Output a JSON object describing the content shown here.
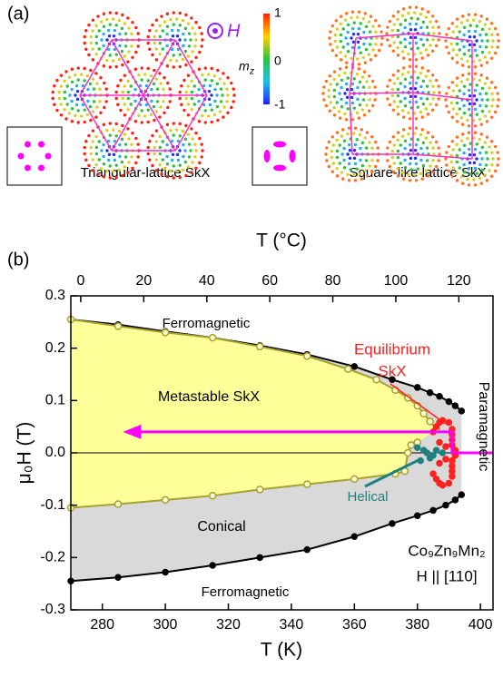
{
  "panel_a": {
    "label": "(a)",
    "field_symbol": "H",
    "colorbar_label": "m",
    "colorbar_label_sub": "z",
    "colorbar_ticks": [
      1,
      0,
      -1
    ],
    "left_caption": "Triangular-lattice  SkX",
    "right_caption": "Square-like lattice SkX"
  },
  "chart_data": {
    "type": "phase-diagram",
    "label": "(b)",
    "xlabel": "T (K)",
    "x2label": "T (°C)",
    "ylabel": "μ₀H (T)",
    "xlim": [
      270,
      404
    ],
    "xticks": [
      280,
      300,
      320,
      340,
      360,
      380,
      400
    ],
    "x2lim": [
      -3.15,
      130.85
    ],
    "x2ticks": [
      0,
      20,
      40,
      60,
      80,
      100,
      120
    ],
    "ylim": [
      -0.3,
      0.3
    ],
    "yticks": [
      0.3,
      0.2,
      0.1,
      {
        "value": 0,
        "label": "0.0"
      },
      -0.1,
      -0.2,
      -0.3
    ],
    "series": [
      {
        "color": "#000000",
        "marker": "filled",
        "line": true,
        "x": [
          270,
          285,
          300,
          315,
          330,
          345,
          360,
          372,
          380,
          384,
          387,
          390,
          392,
          394
        ],
        "values": [
          0.255,
          0.245,
          0.232,
          0.22,
          0.205,
          0.188,
          0.165,
          0.14,
          0.125,
          0.115,
          0.108,
          0.098,
          0.09,
          0.08
        ]
      },
      {
        "color": "#000000",
        "marker": "filled",
        "line": true,
        "x": [
          270,
          285,
          300,
          315,
          330,
          345,
          360,
          372,
          380,
          385,
          389,
          392,
          394
        ],
        "values": [
          -0.245,
          -0.238,
          -0.228,
          -0.215,
          -0.2,
          -0.185,
          -0.16,
          -0.135,
          -0.12,
          -0.11,
          -0.1,
          -0.09,
          -0.08
        ]
      },
      {
        "color": "#a8a030",
        "marker": "open",
        "line": true,
        "x": [
          270,
          285,
          300,
          315,
          330,
          345,
          358,
          367,
          373,
          377,
          380,
          382,
          384,
          386
        ],
        "values": [
          0.255,
          0.242,
          0.23,
          0.22,
          0.203,
          0.185,
          0.16,
          0.14,
          0.12,
          0.105,
          0.09,
          0.075,
          0.06,
          0.045
        ]
      },
      {
        "color": "#a8a030",
        "marker": "open",
        "line": true,
        "x": [
          270,
          285,
          300,
          315,
          330,
          345,
          360,
          373,
          376,
          377,
          378,
          380
        ],
        "values": [
          -0.105,
          -0.098,
          -0.09,
          -0.082,
          -0.07,
          -0.06,
          -0.05,
          -0.04,
          -0.035,
          0,
          0.015,
          0.02
        ]
      },
      {
        "color": "#ff2020",
        "marker": "filled",
        "line": false,
        "x": [
          385,
          386,
          387,
          388,
          390,
          391,
          391,
          391,
          391,
          389,
          387,
          392,
          385,
          386,
          387,
          388,
          390,
          391,
          391,
          391,
          391,
          389,
          387,
          392
        ],
        "values": [
          0.04,
          0.05,
          0.058,
          0.062,
          0.058,
          0.045,
          0.035,
          0.025,
          0.015,
          0.012,
          0.02,
          0.005,
          -0.04,
          -0.05,
          -0.058,
          -0.062,
          -0.058,
          -0.045,
          -0.035,
          -0.025,
          -0.015,
          -0.012,
          -0.02,
          -0.005
        ]
      },
      {
        "color": "#208080",
        "marker": "filled",
        "line": false,
        "x": [
          380,
          382,
          383,
          385,
          386,
          388,
          384,
          381
        ],
        "values": [
          0.01,
          0.005,
          0,
          -0.005,
          0.005,
          0,
          -0.01,
          -0.015
        ]
      }
    ],
    "fills": [
      {
        "color": "#d9d9d9",
        "between": [
          0,
          1
        ]
      },
      {
        "color": "#ffff99",
        "between": [
          2,
          3
        ]
      }
    ],
    "arrow": {
      "color": "#ff00ff",
      "x": [
        404,
        391,
        391,
        290
      ],
      "values": [
        0,
        0,
        0.04,
        0.04
      ]
    },
    "annotations": [
      "Ferromagnetic",
      "Metastable SkX",
      "Equilibrium",
      "SkX",
      "Paramagnetic",
      "Conical",
      "Helical",
      "Co₉Zn₉Mn₂",
      "H || [110]",
      "Ferromagnetic"
    ]
  }
}
